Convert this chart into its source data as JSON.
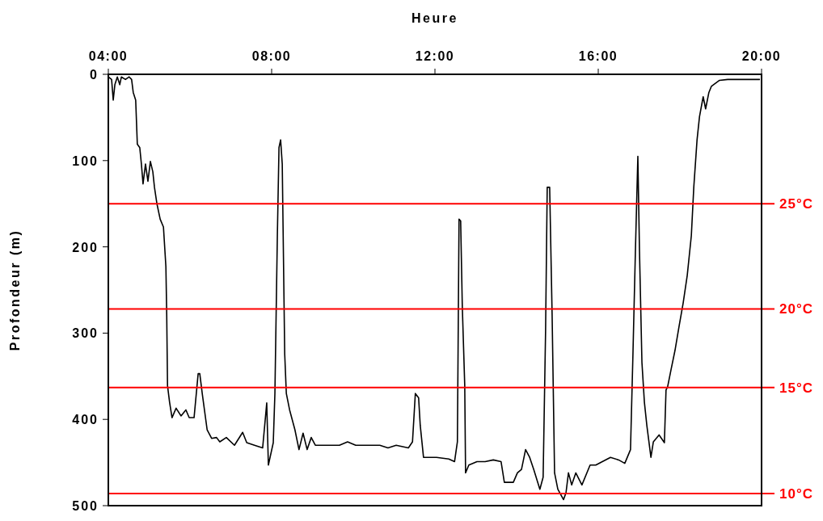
{
  "chart_data": {
    "type": "line",
    "xlabel": "Heure",
    "ylabel": "Profondeur (m)",
    "xlim": [
      4,
      20
    ],
    "xticks": [
      {
        "value": 4,
        "label": "04:00"
      },
      {
        "value": 8,
        "label": "08:00"
      },
      {
        "value": 12,
        "label": "12:00"
      },
      {
        "value": 16,
        "label": "16:00"
      },
      {
        "value": 20,
        "label": "20:00"
      }
    ],
    "ylim": [
      500,
      0
    ],
    "yticks": [
      0,
      100,
      200,
      300,
      400,
      500
    ],
    "grid": false,
    "marker": "none",
    "line_style": "solid",
    "ref_lines": [
      {
        "axis": "y",
        "value": 150,
        "label": "25°C",
        "color": "#ff0000"
      },
      {
        "axis": "y",
        "value": 272,
        "label": "20°C",
        "color": "#ff0000"
      },
      {
        "axis": "y",
        "value": 363,
        "label": "15°C",
        "color": "#ff0000"
      },
      {
        "axis": "y",
        "value": 486,
        "label": "10°C",
        "color": "#ff0000"
      }
    ],
    "series": [
      {
        "color": "#000000",
        "x": [
          4.0,
          4.08,
          4.12,
          4.16,
          4.22,
          4.28,
          4.32,
          4.42,
          4.51,
          4.57,
          4.61,
          4.67,
          4.71,
          4.77,
          4.81,
          4.85,
          4.91,
          4.97,
          5.03,
          5.09,
          5.13,
          5.19,
          5.27,
          5.35,
          5.41,
          5.43,
          5.45,
          5.5,
          5.56,
          5.66,
          5.78,
          5.9,
          5.98,
          6.1,
          6.2,
          6.24,
          6.3,
          6.42,
          6.53,
          6.65,
          6.73,
          6.89,
          7.09,
          7.29,
          7.39,
          7.58,
          7.78,
          7.88,
          7.92,
          8.04,
          8.08,
          8.14,
          8.18,
          8.22,
          8.26,
          8.28,
          8.32,
          8.36,
          8.44,
          8.57,
          8.67,
          8.77,
          8.87,
          8.97,
          9.07,
          9.27,
          9.66,
          9.86,
          10.06,
          10.26,
          10.46,
          10.65,
          10.85,
          11.05,
          11.35,
          11.45,
          11.52,
          11.6,
          11.64,
          11.72,
          12.04,
          12.34,
          12.48,
          12.55,
          12.59,
          12.63,
          12.67,
          12.73,
          12.75,
          12.83,
          13.03,
          13.23,
          13.43,
          13.62,
          13.7,
          13.92,
          14.02,
          14.12,
          14.22,
          14.32,
          14.42,
          14.57,
          14.65,
          14.71,
          14.75,
          14.81,
          14.87,
          14.93,
          15.01,
          15.15,
          15.21,
          15.27,
          15.35,
          15.45,
          15.6,
          15.8,
          15.94,
          16.1,
          16.3,
          16.5,
          16.65,
          16.79,
          16.85,
          16.91,
          16.97,
          17.01,
          17.07,
          17.13,
          17.19,
          17.29,
          17.35,
          17.49,
          17.62,
          17.66,
          17.7,
          17.78,
          17.88,
          17.98,
          18.08,
          18.18,
          18.28,
          18.34,
          18.42,
          18.48,
          18.57,
          18.63,
          18.71,
          18.77,
          18.97,
          19.17,
          19.56,
          19.96
        ],
        "values": [
          3,
          6,
          30,
          12,
          3,
          12,
          3,
          6,
          3,
          6,
          21,
          30,
          81,
          85,
          104,
          127,
          104,
          124,
          101,
          113,
          131,
          150,
          168,
          177,
          223,
          278,
          361,
          380,
          398,
          387,
          396,
          389,
          398,
          398,
          347,
          347,
          370,
          412,
          422,
          421,
          426,
          421,
          430,
          415,
          427,
          430,
          433,
          381,
          453,
          427,
          370,
          187,
          85,
          76,
          104,
          177,
          324,
          370,
          389,
          412,
          435,
          416,
          435,
          421,
          430,
          430,
          430,
          426,
          430,
          430,
          430,
          430,
          433,
          430,
          433,
          426,
          370,
          375,
          407,
          444,
          444,
          446,
          449,
          426,
          168,
          170,
          269,
          361,
          462,
          453,
          449,
          449,
          447,
          449,
          473,
          473,
          462,
          458,
          435,
          444,
          458,
          481,
          467,
          297,
          131,
          131,
          279,
          462,
          481,
          493,
          485,
          462,
          476,
          462,
          476,
          453,
          453,
          449,
          444,
          447,
          451,
          435,
          324,
          205,
          95,
          205,
          334,
          380,
          407,
          444,
          426,
          418,
          427,
          366,
          362,
          343,
          320,
          292,
          265,
          233,
          187,
          131,
          76,
          49,
          26,
          40,
          21,
          14,
          7,
          6,
          6,
          6
        ]
      }
    ]
  }
}
